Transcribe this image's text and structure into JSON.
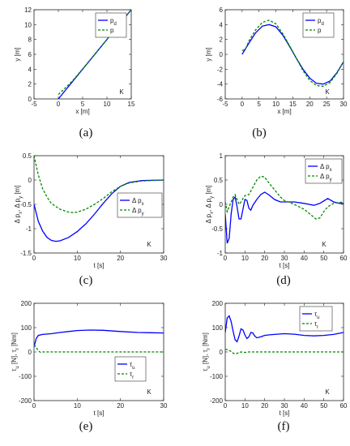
{
  "colors": {
    "blue": "#0000ff",
    "green": "#008800"
  },
  "chart_data": [
    {
      "id": "a",
      "type": "line",
      "panel_label": "(a)",
      "xlabel": "x [m]",
      "ylabel": "y [m]",
      "xlim": [
        -5,
        15
      ],
      "ylim": [
        0,
        12
      ],
      "xticks": [
        -5,
        0,
        5,
        10,
        15
      ],
      "yticks": [
        0,
        2,
        4,
        6,
        8,
        10,
        12
      ],
      "annotation": "K",
      "legend_position": "top-left",
      "series": [
        {
          "name": "p_d",
          "legend_main": "p",
          "legend_sub": "d",
          "style": "solid",
          "color": "#0000ff",
          "points": [
            [
              0,
              0
            ],
            [
              15,
              12
            ]
          ]
        },
        {
          "name": "p",
          "legend_main": "p",
          "legend_sub": "",
          "style": "dashed",
          "color": "#008800",
          "points": [
            [
              0,
              0.6
            ],
            [
              1,
              1.2
            ],
            [
              3,
              2.5
            ],
            [
              6,
              4.8
            ],
            [
              9,
              7.2
            ],
            [
              12,
              9.6
            ],
            [
              15,
              12
            ]
          ]
        }
      ]
    },
    {
      "id": "b",
      "type": "line",
      "panel_label": "(b)",
      "xlabel": "x [m]",
      "ylabel": "y [m]",
      "xlim": [
        -5,
        30
      ],
      "ylim": [
        -6,
        6
      ],
      "xticks": [
        -5,
        0,
        5,
        10,
        15,
        20,
        25,
        30
      ],
      "yticks": [
        -6,
        -4,
        -2,
        0,
        2,
        4,
        6
      ],
      "annotation": "K",
      "legend_position": "top-right",
      "series": [
        {
          "name": "p_d",
          "legend_main": "p",
          "legend_sub": "d",
          "style": "solid",
          "color": "#0000ff",
          "points": [
            [
              0,
              0
            ],
            [
              2,
              1.5
            ],
            [
              4,
              2.9
            ],
            [
              6,
              3.8
            ],
            [
              8,
              4.0
            ],
            [
              10,
              3.7
            ],
            [
              12,
              2.6
            ],
            [
              14,
              1.1
            ],
            [
              16,
              -0.5
            ],
            [
              18,
              -2.0
            ],
            [
              20,
              -3.2
            ],
            [
              22,
              -3.9
            ],
            [
              24,
              -4.0
            ],
            [
              26,
              -3.6
            ],
            [
              28,
              -2.5
            ],
            [
              30,
              -1.0
            ]
          ]
        },
        {
          "name": "p",
          "legend_main": "p",
          "legend_sub": "",
          "style": "dashed",
          "color": "#008800",
          "points": [
            [
              0,
              0.5
            ],
            [
              1,
              0.7
            ],
            [
              2,
              1.8
            ],
            [
              4,
              3.3
            ],
            [
              6,
              4.3
            ],
            [
              8,
              4.6
            ],
            [
              10,
              4.1
            ],
            [
              12,
              2.8
            ],
            [
              14,
              1.2
            ],
            [
              16,
              -0.5
            ],
            [
              18,
              -2.2
            ],
            [
              20,
              -3.5
            ],
            [
              22,
              -4.2
            ],
            [
              24,
              -4.3
            ],
            [
              26,
              -3.8
            ],
            [
              28,
              -2.6
            ],
            [
              30,
              -1.0
            ]
          ]
        }
      ]
    },
    {
      "id": "c",
      "type": "line",
      "panel_label": "(c)",
      "xlabel": "t [s]",
      "ylabel": "Δ p_x, Δ p_y [m]",
      "ylabel_parts": [
        "Δ p",
        "x",
        ", Δ p",
        "y",
        " [m]"
      ],
      "xlim": [
        0,
        30
      ],
      "ylim": [
        -1.5,
        0.5
      ],
      "xticks": [
        0,
        10,
        20,
        30
      ],
      "yticks": [
        -1.5,
        -1,
        -0.5,
        0,
        0.5
      ],
      "annotation": "K",
      "legend_position": "center-right",
      "series": [
        {
          "name": "Δ p_x",
          "legend_main": "Δ p",
          "legend_sub": "x",
          "style": "solid",
          "color": "#0000ff",
          "points": [
            [
              0,
              -0.5
            ],
            [
              1,
              -0.85
            ],
            [
              2,
              -1.05
            ],
            [
              3,
              -1.18
            ],
            [
              4,
              -1.24
            ],
            [
              5,
              -1.26
            ],
            [
              6,
              -1.25
            ],
            [
              8,
              -1.18
            ],
            [
              10,
              -1.06
            ],
            [
              12,
              -0.9
            ],
            [
              14,
              -0.7
            ],
            [
              16,
              -0.48
            ],
            [
              18,
              -0.28
            ],
            [
              20,
              -0.13
            ],
            [
              22,
              -0.05
            ],
            [
              25,
              -0.01
            ],
            [
              30,
              0
            ]
          ]
        },
        {
          "name": "Δ p_y",
          "legend_main": "Δ p",
          "legend_sub": "y",
          "style": "dashed",
          "color": "#008800",
          "points": [
            [
              0,
              0.5
            ],
            [
              1,
              0.1
            ],
            [
              2,
              -0.18
            ],
            [
              3,
              -0.35
            ],
            [
              4,
              -0.48
            ],
            [
              6,
              -0.6
            ],
            [
              8,
              -0.66
            ],
            [
              9,
              -0.67
            ],
            [
              10,
              -0.66
            ],
            [
              12,
              -0.6
            ],
            [
              14,
              -0.5
            ],
            [
              16,
              -0.38
            ],
            [
              18,
              -0.24
            ],
            [
              20,
              -0.13
            ],
            [
              22,
              -0.06
            ],
            [
              25,
              -0.02
            ],
            [
              30,
              0
            ]
          ]
        }
      ]
    },
    {
      "id": "d",
      "type": "line",
      "panel_label": "(d)",
      "xlabel": "t [s]",
      "ylabel": "Δ p_x, Δ p_y [m]",
      "ylabel_parts": [
        "Δ p",
        "x",
        ", Δ p",
        "y",
        " [m]"
      ],
      "xlim": [
        0,
        60
      ],
      "ylim": [
        -1,
        1
      ],
      "xticks": [
        0,
        10,
        20,
        30,
        40,
        50,
        60
      ],
      "yticks": [
        -1,
        -0.5,
        0,
        0.5,
        1
      ],
      "annotation": "K",
      "legend_position": "top-right",
      "series": [
        {
          "name": "Δ p_x",
          "legend_main": "Δ p",
          "legend_sub": "x",
          "style": "solid",
          "color": "#0000ff",
          "points": [
            [
              0,
              -0.2
            ],
            [
              1,
              -0.8
            ],
            [
              2,
              -0.7
            ],
            [
              3,
              -0.2
            ],
            [
              4,
              0.1
            ],
            [
              5,
              0.15
            ],
            [
              6,
              -0.05
            ],
            [
              7,
              -0.3
            ],
            [
              8,
              -0.3
            ],
            [
              9,
              -0.1
            ],
            [
              10,
              0.1
            ],
            [
              11,
              0.08
            ],
            [
              12,
              -0.08
            ],
            [
              13,
              -0.12
            ],
            [
              14,
              -0.02
            ],
            [
              16,
              0.1
            ],
            [
              18,
              0.2
            ],
            [
              20,
              0.25
            ],
            [
              22,
              0.2
            ],
            [
              25,
              0.1
            ],
            [
              28,
              0.05
            ],
            [
              30,
              0.05
            ],
            [
              35,
              0.05
            ],
            [
              40,
              0.02
            ],
            [
              45,
              -0.02
            ],
            [
              48,
              0.02
            ],
            [
              52,
              0.12
            ],
            [
              55,
              0.05
            ],
            [
              58,
              0.02
            ],
            [
              60,
              0.02
            ]
          ]
        },
        {
          "name": "Δ p_y",
          "legend_main": "Δ p",
          "legend_sub": "y",
          "style": "dashed",
          "color": "#008800",
          "points": [
            [
              0,
              0.05
            ],
            [
              1,
              -0.15
            ],
            [
              2,
              -0.05
            ],
            [
              3,
              0.05
            ],
            [
              4,
              0.15
            ],
            [
              5,
              0.2
            ],
            [
              6,
              0.1
            ],
            [
              7,
              0.0
            ],
            [
              8,
              0.05
            ],
            [
              9,
              0.12
            ],
            [
              10,
              0.18
            ],
            [
              12,
              0.2
            ],
            [
              14,
              0.35
            ],
            [
              16,
              0.5
            ],
            [
              18,
              0.58
            ],
            [
              20,
              0.56
            ],
            [
              22,
              0.45
            ],
            [
              25,
              0.3
            ],
            [
              28,
              0.15
            ],
            [
              30,
              0.08
            ],
            [
              35,
              0.0
            ],
            [
              40,
              -0.1
            ],
            [
              43,
              -0.2
            ],
            [
              46,
              -0.3
            ],
            [
              48,
              -0.28
            ],
            [
              50,
              -0.15
            ],
            [
              52,
              -0.05
            ],
            [
              55,
              0.02
            ],
            [
              58,
              0.04
            ],
            [
              60,
              0.05
            ]
          ]
        }
      ]
    },
    {
      "id": "e",
      "type": "line",
      "panel_label": "(e)",
      "xlabel": "t [s]",
      "ylabel": "τ_u [N], τ_r [Nm]",
      "ylabel_parts": [
        "τ",
        "u",
        " [N], τ",
        "r",
        " [Nm]"
      ],
      "xlim": [
        0,
        30
      ],
      "ylim": [
        -200,
        200
      ],
      "xticks": [
        0,
        10,
        20,
        30
      ],
      "yticks": [
        -200,
        -100,
        0,
        100,
        200
      ],
      "annotation": "K",
      "legend_position": "bottom-right",
      "series": [
        {
          "name": "τ_u",
          "legend_main": "τ",
          "legend_sub": "u",
          "style": "solid",
          "color": "#0000ff",
          "points": [
            [
              0,
              20
            ],
            [
              0.5,
              55
            ],
            [
              1,
              68
            ],
            [
              2,
              72
            ],
            [
              4,
              75
            ],
            [
              6,
              80
            ],
            [
              8,
              84
            ],
            [
              10,
              88
            ],
            [
              13,
              90
            ],
            [
              16,
              89
            ],
            [
              20,
              84
            ],
            [
              24,
              80
            ],
            [
              27,
              79
            ],
            [
              30,
              78
            ]
          ]
        },
        {
          "name": "τ_r",
          "legend_main": "τ",
          "legend_sub": "r",
          "style": "dashed",
          "color": "#008800",
          "points": [
            [
              0,
              30
            ],
            [
              0.5,
              18
            ],
            [
              1,
              5
            ],
            [
              1.5,
              -2
            ],
            [
              2,
              0
            ],
            [
              5,
              0
            ],
            [
              10,
              0
            ],
            [
              20,
              0
            ],
            [
              30,
              0
            ]
          ]
        }
      ]
    },
    {
      "id": "f",
      "type": "line",
      "panel_label": "(f)",
      "xlabel": "t [s]",
      "ylabel": "τ_u [N], τ_r [Nm]",
      "ylabel_parts": [
        "τ",
        "u",
        " [N], τ",
        "r",
        " [Nm]"
      ],
      "xlim": [
        0,
        60
      ],
      "ylim": [
        -200,
        200
      ],
      "xticks": [
        0,
        10,
        20,
        30,
        40,
        50,
        60
      ],
      "yticks": [
        -200,
        -100,
        0,
        100,
        200
      ],
      "annotation": "K",
      "legend_position": "top-right",
      "series": [
        {
          "name": "τ_u",
          "legend_main": "τ",
          "legend_sub": "u",
          "style": "solid",
          "color": "#0000ff",
          "points": [
            [
              0,
              80
            ],
            [
              1,
              140
            ],
            [
              2,
              148
            ],
            [
              3,
              125
            ],
            [
              4,
              85
            ],
            [
              5,
              50
            ],
            [
              6,
              42
            ],
            [
              7,
              65
            ],
            [
              8,
              95
            ],
            [
              9,
              90
            ],
            [
              10,
              70
            ],
            [
              11,
              55
            ],
            [
              12,
              62
            ],
            [
              13,
              80
            ],
            [
              14,
              78
            ],
            [
              15,
              65
            ],
            [
              16,
              58
            ],
            [
              18,
              62
            ],
            [
              20,
              68
            ],
            [
              22,
              70
            ],
            [
              25,
              72
            ],
            [
              30,
              75
            ],
            [
              35,
              73
            ],
            [
              40,
              68
            ],
            [
              45,
              66
            ],
            [
              50,
              68
            ],
            [
              55,
              72
            ],
            [
              60,
              80
            ]
          ]
        },
        {
          "name": "τ_r",
          "legend_main": "τ",
          "legend_sub": "r",
          "style": "dashed",
          "color": "#008800",
          "points": [
            [
              0,
              10
            ],
            [
              1,
              10
            ],
            [
              2,
              6
            ],
            [
              3,
              2
            ],
            [
              4,
              -5
            ],
            [
              5,
              -8
            ],
            [
              6,
              -6
            ],
            [
              7,
              -2
            ],
            [
              8,
              0
            ],
            [
              10,
              -2
            ],
            [
              12,
              0
            ],
            [
              15,
              0
            ],
            [
              20,
              0
            ],
            [
              30,
              0
            ],
            [
              40,
              0
            ],
            [
              50,
              0
            ],
            [
              60,
              0
            ]
          ]
        }
      ]
    }
  ]
}
